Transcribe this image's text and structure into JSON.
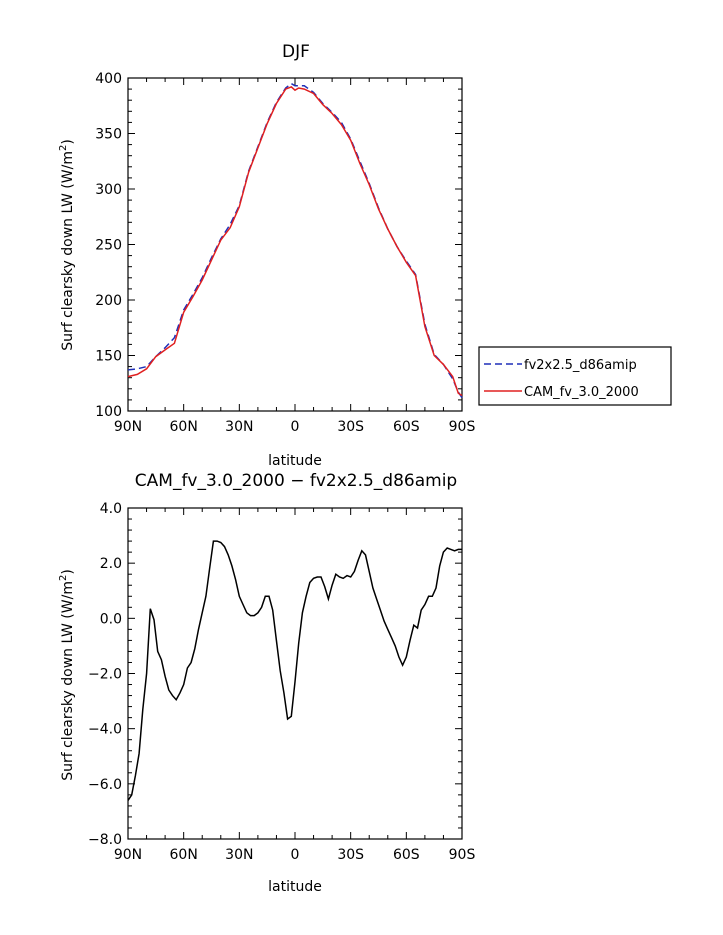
{
  "chart_data": [
    {
      "type": "line",
      "title": "DJF",
      "xlabel": "latitude",
      "ylabel": "Surf clearsky down LW (W/m²)",
      "ylabel_main": "Surf clearsky down LW (W/m",
      "ylabel_sup": "2",
      "ylabel_end": ")",
      "xlim": [
        -90,
        90
      ],
      "ylim": [
        100,
        400
      ],
      "x_ticks": [
        -90,
        -60,
        -30,
        0,
        30,
        60,
        90
      ],
      "x_tick_labels": [
        "90N",
        "60N",
        "30N",
        "0",
        "30S",
        "60S",
        "90S"
      ],
      "y_ticks": [
        100,
        150,
        200,
        250,
        300,
        350,
        400
      ],
      "y_tick_labels": [
        "100",
        "150",
        "200",
        "250",
        "300",
        "350",
        "400"
      ],
      "grid": false,
      "legend_position": "right",
      "series": [
        {
          "name": "fv2x2.5_d86amip",
          "color": "#1f2fb8",
          "dash": "dashed",
          "x": [
            -90,
            -85,
            -80,
            -75,
            -70,
            -65,
            -60,
            -55,
            -50,
            -45,
            -40,
            -35,
            -30,
            -25,
            -20,
            -15,
            -10,
            -5,
            -2,
            0,
            2,
            5,
            10,
            15,
            20,
            25,
            30,
            35,
            40,
            45,
            50,
            55,
            60,
            65,
            70,
            75,
            80,
            85,
            88,
            90
          ],
          "y": [
            137,
            138,
            140,
            149,
            157,
            166,
            191,
            205,
            220,
            238,
            255,
            268,
            285,
            316,
            338,
            360,
            378,
            391,
            395,
            393,
            393,
            393,
            387,
            377,
            369,
            360,
            345,
            325,
            305,
            283,
            264,
            248,
            235,
            223,
            178,
            151,
            142,
            129,
            117,
            112
          ]
        },
        {
          "name": "CAM_fv_3.0_2000",
          "color": "#e02020",
          "dash": "solid",
          "x": [
            -90,
            -85,
            -80,
            -75,
            -70,
            -65,
            -60,
            -55,
            -50,
            -45,
            -40,
            -35,
            -30,
            -25,
            -20,
            -15,
            -10,
            -5,
            -2,
            0,
            2,
            5,
            10,
            15,
            20,
            25,
            30,
            35,
            40,
            45,
            50,
            55,
            60,
            65,
            70,
            75,
            80,
            85,
            88,
            90
          ],
          "y": [
            131,
            133,
            138,
            149,
            155,
            161,
            189,
            203,
            218,
            236,
            254,
            265,
            284,
            315,
            337,
            359,
            377,
            390,
            392,
            389,
            391,
            390,
            386,
            376,
            368,
            358,
            344,
            323,
            304,
            282,
            264,
            248,
            234,
            222,
            176,
            150,
            142,
            131,
            116,
            114
          ]
        }
      ]
    },
    {
      "type": "line",
      "title": "CAM_fv_3.0_2000 − fv2x2.5_d86amip",
      "xlabel": "latitude",
      "ylabel": "Surf clearsky down LW (W/m²)",
      "ylabel_main": "Surf clearsky down LW (W/m",
      "ylabel_sup": "2",
      "ylabel_end": ")",
      "xlim": [
        -90,
        90
      ],
      "ylim": [
        -8,
        4
      ],
      "x_ticks": [
        -90,
        -60,
        -30,
        0,
        30,
        60,
        90
      ],
      "x_tick_labels": [
        "90N",
        "60N",
        "30N",
        "0",
        "30S",
        "60S",
        "90S"
      ],
      "y_ticks": [
        -8,
        -6,
        -4,
        -2,
        0,
        2,
        4
      ],
      "y_tick_labels": [
        "−8.0",
        "−6.0",
        "−4.0",
        "−2.0",
        "0.0",
        "2.0",
        "4.0"
      ],
      "grid": false,
      "series": [
        {
          "color": "#000000",
          "dash": "solid",
          "x": [
            -90,
            -88,
            -86,
            -84,
            -82,
            -80,
            -78,
            -76,
            -74,
            -72,
            -70,
            -68,
            -66,
            -64,
            -62,
            -60,
            -58,
            -56,
            -54,
            -52,
            -50,
            -48,
            -46,
            -44,
            -42,
            -40,
            -38,
            -36,
            -34,
            -32,
            -30,
            -28,
            -26,
            -24,
            -22,
            -20,
            -18,
            -16,
            -14,
            -12,
            -10,
            -8,
            -6,
            -4,
            -2,
            0,
            2,
            4,
            6,
            8,
            10,
            12,
            14,
            16,
            18,
            20,
            22,
            24,
            26,
            28,
            30,
            32,
            34,
            36,
            38,
            40,
            42,
            44,
            46,
            48,
            50,
            52,
            54,
            56,
            58,
            60,
            62,
            64,
            66,
            68,
            70,
            72,
            74,
            76,
            78,
            80,
            82,
            84,
            86,
            88,
            90
          ],
          "y": [
            -6.6,
            -6.4,
            -5.7,
            -4.9,
            -3.3,
            -2.0,
            0.35,
            -0.05,
            -1.2,
            -1.5,
            -2.1,
            -2.6,
            -2.8,
            -2.95,
            -2.7,
            -2.4,
            -1.8,
            -1.6,
            -1.1,
            -0.4,
            0.2,
            0.8,
            1.8,
            2.8,
            2.8,
            2.75,
            2.6,
            2.3,
            1.9,
            1.4,
            0.8,
            0.5,
            0.2,
            0.1,
            0.1,
            0.2,
            0.4,
            0.8,
            0.8,
            0.3,
            -0.8,
            -1.9,
            -2.7,
            -3.65,
            -3.55,
            -2.3,
            -0.9,
            0.2,
            0.8,
            1.3,
            1.45,
            1.5,
            1.5,
            1.15,
            0.7,
            1.2,
            1.6,
            1.5,
            1.45,
            1.55,
            1.5,
            1.7,
            2.1,
            2.45,
            2.3,
            1.7,
            1.1,
            0.7,
            0.3,
            -0.1,
            -0.4,
            -0.7,
            -1.0,
            -1.4,
            -1.7,
            -1.4,
            -0.8,
            -0.25,
            -0.35,
            0.3,
            0.5,
            0.8,
            0.8,
            1.1,
            1.9,
            2.4,
            2.55,
            2.5,
            2.45,
            2.5,
            2.5
          ]
        }
      ]
    }
  ]
}
